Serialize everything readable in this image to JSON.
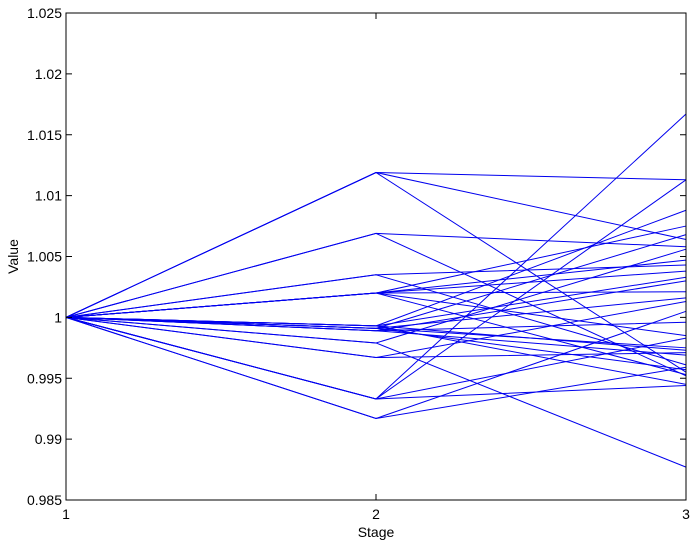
{
  "chart_data": {
    "type": "line",
    "xlabel": "Stage",
    "ylabel": "Value",
    "x": [
      1,
      2,
      3
    ],
    "xticks": [
      "1",
      "2",
      "3"
    ],
    "xlim": [
      1,
      3
    ],
    "ylim": [
      0.985,
      1.025
    ],
    "yticks": [
      "0.985",
      "0.99",
      "0.995",
      "1",
      "1.005",
      "1.01",
      "1.015",
      "1.02",
      "1.025"
    ],
    "grid": false,
    "legend": "none",
    "line_color": "#0000ee",
    "stage2_values": [
      1.0119,
      1.0069,
      1.0035,
      1.002,
      0.9993,
      0.9991,
      0.9989,
      0.9979,
      0.9967,
      0.9933,
      0.9917
    ],
    "paths": [
      [
        1,
        1.0119,
        1.0113
      ],
      [
        1,
        1.0119,
        1.0064
      ],
      [
        1,
        1.0119,
        0.9955
      ],
      [
        1,
        1.0069,
        1.0058
      ],
      [
        1,
        1.0069,
        0.9952
      ],
      [
        1,
        1.0035,
        1.0043
      ],
      [
        1,
        1.0035,
        0.9961
      ],
      [
        1,
        1.002,
        1.0075
      ],
      [
        1,
        1.002,
        1.0047
      ],
      [
        1,
        1.002,
        1.0038
      ],
      [
        1,
        1.002,
        1.0021
      ],
      [
        1,
        1.002,
        0.9985
      ],
      [
        1,
        1.002,
        0.9953
      ],
      [
        1,
        0.9993,
        1.0088
      ],
      [
        1,
        0.9993,
        1.0033
      ],
      [
        1,
        0.9993,
        0.9973
      ],
      [
        1,
        0.9993,
        0.9945
      ],
      [
        1,
        0.9991,
        1.0068
      ],
      [
        1,
        0.9991,
        1.0016
      ],
      [
        1,
        0.9991,
        0.9975
      ],
      [
        1,
        0.9991,
        0.9957
      ],
      [
        1,
        0.9989,
        1.003
      ],
      [
        1,
        0.9989,
        0.9996
      ],
      [
        1,
        0.9989,
        0.9969
      ],
      [
        1,
        0.9979,
        1.0056
      ],
      [
        1,
        0.9979,
        0.9877
      ],
      [
        1,
        0.9967,
        1.0013
      ],
      [
        1,
        0.9967,
        0.9971
      ],
      [
        1,
        0.9933,
        1.0167
      ],
      [
        1,
        0.9933,
        1.0113
      ],
      [
        1,
        0.9933,
        0.9983
      ],
      [
        1,
        0.9933,
        0.9944
      ],
      [
        1,
        0.9917,
        1.0005
      ],
      [
        1,
        0.9917,
        0.9959
      ]
    ]
  }
}
